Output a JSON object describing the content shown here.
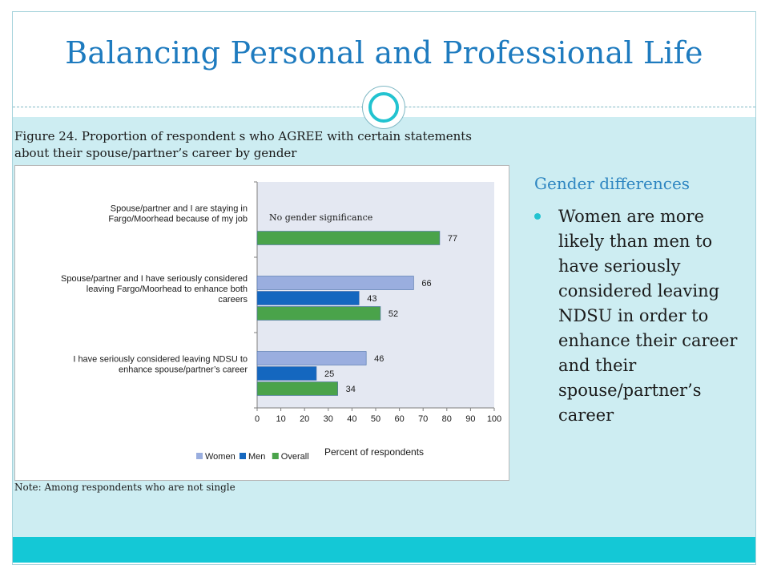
{
  "slide": {
    "title": "Balancing Personal and Professional Life",
    "figure_caption": "Figure 24.  Proportion of respondent s who AGREE with certain statements about their spouse/partner’s career by gender",
    "note": "Note: Among respondents who are not single"
  },
  "sidebar": {
    "heading": "Gender differences",
    "bullets": [
      "Women are more likely than men to have seriously considered leaving NDSU in order to enhance their career and their spouse/partner’s career"
    ]
  },
  "colors": {
    "Women": "#9aaedf",
    "Men": "#1467bf",
    "Overall": "#4aa34a",
    "plot_bg": "#e4e8f2",
    "title": "#1e7bbf",
    "accent": "#22c3d0"
  },
  "chart_data": {
    "type": "bar",
    "orientation": "horizontal",
    "categories": [
      [
        "Spouse/partner and I are staying in",
        "Fargo/Moorhead because of my job"
      ],
      [
        "Spouse/partner and I have seriously considered",
        "leaving Fargo/Moorhead to enhance both",
        "careers"
      ],
      [
        "I have seriously considered leaving NDSU to",
        "enhance spouse/partner’s career"
      ]
    ],
    "series": [
      {
        "name": "Women",
        "values": [
          null,
          66,
          46
        ]
      },
      {
        "name": "Men",
        "values": [
          null,
          43,
          25
        ]
      },
      {
        "name": "Overall",
        "values": [
          77,
          52,
          34
        ]
      }
    ],
    "xlabel": "Percent of respondents",
    "xlim": [
      0,
      100
    ],
    "xticks": [
      0,
      10,
      20,
      30,
      40,
      50,
      60,
      70,
      80,
      90,
      100
    ],
    "annotation": "No gender significance",
    "legend_position": "bottom",
    "grid": false
  }
}
